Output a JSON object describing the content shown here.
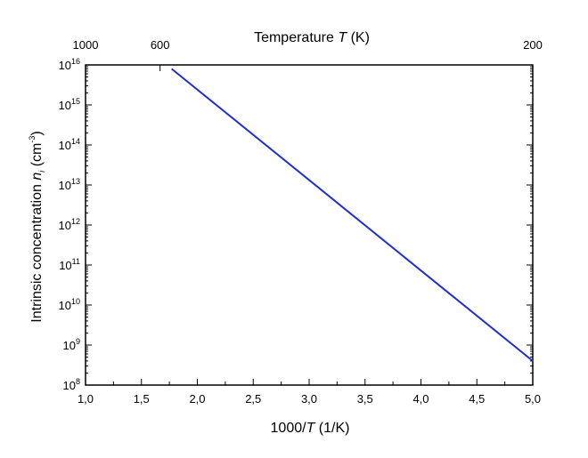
{
  "chart_data": {
    "type": "line",
    "title": "",
    "xlabel_prefix": "1000/",
    "xlabel_var": "T",
    "xlabel_suffix": " (1/K)",
    "ylabel_prefix": "Intrinsic concentration ",
    "ylabel_var": "n",
    "ylabel_sub": "i",
    "ylabel_unit": " (cm",
    "ylabel_exp": "-3",
    "ylabel_close": ")",
    "top_axis_label_prefix": "Temperature ",
    "top_axis_label_var": "T",
    "top_axis_label_suffix": " (K)",
    "x_scale": "linear",
    "y_scale": "log",
    "xlim": [
      1.0,
      5.0
    ],
    "ylim": [
      100000000.0,
      1e+16
    ],
    "grid": false,
    "x_ticks": [
      "1,0",
      "1,5",
      "2,0",
      "2,5",
      "3,0",
      "3,5",
      "4,0",
      "4,5",
      "5,0"
    ],
    "x_tick_values": [
      1.0,
      1.5,
      2.0,
      2.5,
      3.0,
      3.5,
      4.0,
      4.5,
      5.0
    ],
    "y_tick_exponents": [
      "8",
      "9",
      "10",
      "11",
      "12",
      "13",
      "14",
      "15",
      "16"
    ],
    "y_tick_base": "10",
    "top_ticks": [
      {
        "label": "1000",
        "temperature": 1000
      },
      {
        "label": "600",
        "temperature": 600
      },
      {
        "label": "200",
        "temperature": 200
      }
    ],
    "series": [
      {
        "color": "#1f2fd0",
        "x": [
          1.77,
          5.0
        ],
        "y": [
          8000000000000000.0,
          400000000.0
        ]
      }
    ]
  }
}
